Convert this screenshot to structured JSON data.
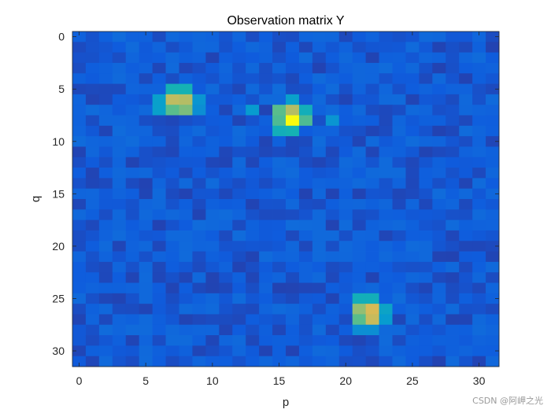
{
  "chart_data": {
    "type": "heatmap",
    "title": "Observation matrix Y",
    "xlabel": "p",
    "ylabel": "q",
    "xlim": [
      -0.5,
      31.5
    ],
    "ylim": [
      -0.5,
      31.5
    ],
    "y_direction": "reverse",
    "xticks": [
      0,
      5,
      10,
      15,
      20,
      25,
      30
    ],
    "yticks": [
      0,
      5,
      10,
      15,
      20,
      25,
      30
    ],
    "grid": false,
    "colormap": "parula",
    "rows": 32,
    "cols": 32,
    "background_level": 0.12,
    "peaks": [
      {
        "q": 6,
        "p": 7,
        "level": 0.8
      },
      {
        "q": 6,
        "p": 8,
        "level": 0.78
      },
      {
        "q": 7,
        "p": 7,
        "level": 0.62
      },
      {
        "q": 7,
        "p": 8,
        "level": 0.68
      },
      {
        "q": 5,
        "p": 7,
        "level": 0.5
      },
      {
        "q": 5,
        "p": 8,
        "level": 0.5
      },
      {
        "q": 6,
        "p": 6,
        "level": 0.4
      },
      {
        "q": 7,
        "p": 6,
        "level": 0.4
      },
      {
        "q": 6,
        "p": 9,
        "level": 0.35
      },
      {
        "q": 7,
        "p": 9,
        "level": 0.32
      },
      {
        "q": 8,
        "p": 15,
        "level": 0.6
      },
      {
        "q": 8,
        "p": 16,
        "level": 1.0
      },
      {
        "q": 8,
        "p": 17,
        "level": 0.6
      },
      {
        "q": 7,
        "p": 15,
        "level": 0.62
      },
      {
        "q": 7,
        "p": 16,
        "level": 0.78
      },
      {
        "q": 7,
        "p": 17,
        "level": 0.48
      },
      {
        "q": 9,
        "p": 15,
        "level": 0.48
      },
      {
        "q": 9,
        "p": 16,
        "level": 0.5
      },
      {
        "q": 6,
        "p": 16,
        "level": 0.4
      },
      {
        "q": 7,
        "p": 13,
        "level": 0.38
      },
      {
        "q": 8,
        "p": 19,
        "level": 0.35
      },
      {
        "q": 26,
        "p": 21,
        "level": 0.72
      },
      {
        "q": 26,
        "p": 22,
        "level": 0.85
      },
      {
        "q": 27,
        "p": 21,
        "level": 0.62
      },
      {
        "q": 27,
        "p": 22,
        "level": 0.82
      },
      {
        "q": 25,
        "p": 21,
        "level": 0.48
      },
      {
        "q": 25,
        "p": 22,
        "level": 0.48
      },
      {
        "q": 26,
        "p": 23,
        "level": 0.42
      },
      {
        "q": 27,
        "p": 23,
        "level": 0.38
      },
      {
        "q": 28,
        "p": 21,
        "level": 0.32
      },
      {
        "q": 28,
        "p": 22,
        "level": 0.32
      }
    ]
  },
  "watermark": "CSDN @阿岬之光"
}
